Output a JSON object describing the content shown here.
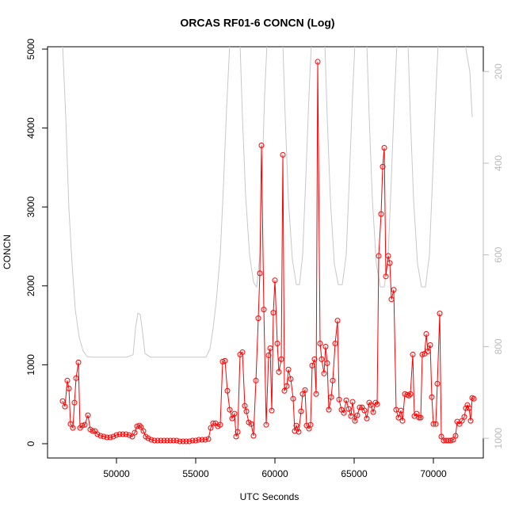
{
  "chart_data": {
    "type": "line",
    "title": "ORCAS RF01-6 CONCN (Log)",
    "x_label": "UTC Seconds",
    "y_label": "CONCN",
    "xlim": [
      45650,
      73150
    ],
    "xticks": [
      50000,
      55000,
      60000,
      65000,
      70000
    ],
    "ylim": [
      -181,
      5030
    ],
    "yticks": [
      0,
      1000,
      2000,
      3000,
      4000,
      5000
    ],
    "y2lim": [
      1043,
      146
    ],
    "y2ticks": [
      200,
      400,
      600,
      800,
      1000
    ],
    "series": [
      {
        "color": "#ff0000",
        "marker": "circle",
        "x": [
          46600,
          46750,
          46900,
          47000,
          47100,
          47250,
          47350,
          47450,
          47600,
          47700,
          47850,
          48000,
          48200,
          48350,
          48500,
          48650,
          48800,
          49000,
          49200,
          49400,
          49600,
          49800,
          50000,
          50200,
          50400,
          50600,
          50800,
          51000,
          51150,
          51300,
          51450,
          51550,
          51700,
          51850,
          52000,
          52200,
          52400,
          52600,
          52800,
          53000,
          53200,
          53400,
          53600,
          53800,
          54000,
          54200,
          54400,
          54600,
          54800,
          55000,
          55200,
          55400,
          55600,
          55800,
          55950,
          56100,
          56250,
          56400,
          56550,
          56700,
          56850,
          57000,
          57150,
          57300,
          57450,
          57550,
          57650,
          57800,
          57950,
          58100,
          58200,
          58350,
          58500,
          58650,
          58800,
          58950,
          59050,
          59150,
          59300,
          59450,
          59600,
          59700,
          59800,
          59900,
          60000,
          60150,
          60250,
          60400,
          60500,
          60600,
          60750,
          60850,
          61000,
          61150,
          61250,
          61350,
          61500,
          61650,
          61750,
          61900,
          62000,
          62150,
          62250,
          62350,
          62500,
          62600,
          62700,
          62850,
          62950,
          63100,
          63200,
          63300,
          63400,
          63550,
          63650,
          63800,
          63950,
          64050,
          64200,
          64350,
          64500,
          64650,
          64800,
          64900,
          65050,
          65200,
          65350,
          65500,
          65650,
          65800,
          65950,
          66050,
          66200,
          66350,
          66450,
          66550,
          66700,
          66800,
          66900,
          67000,
          67150,
          67250,
          67350,
          67500,
          67650,
          67800,
          67950,
          68050,
          68200,
          68350,
          68450,
          68550,
          68700,
          68800,
          68950,
          69100,
          69200,
          69300,
          69450,
          69550,
          69650,
          69800,
          69900,
          70000,
          70150,
          70250,
          70400,
          70500,
          70650,
          70800,
          70950,
          71100,
          71250,
          71400,
          71500,
          71650,
          71800,
          71950,
          72050,
          72150,
          72250,
          72350,
          72450,
          72550
        ],
        "values": [
          540,
          470,
          800,
          700,
          250,
          200,
          520,
          830,
          1030,
          200,
          230,
          240,
          360,
          180,
          160,
          160,
          120,
          100,
          90,
          80,
          80,
          90,
          110,
          120,
          120,
          120,
          110,
          90,
          140,
          220,
          230,
          210,
          160,
          90,
          70,
          50,
          40,
          40,
          40,
          40,
          40,
          40,
          40,
          40,
          30,
          30,
          30,
          30,
          40,
          40,
          50,
          50,
          50,
          60,
          200,
          260,
          260,
          220,
          240,
          1040,
          1050,
          670,
          430,
          320,
          380,
          90,
          150,
          1130,
          1160,
          480,
          410,
          270,
          250,
          100,
          800,
          1590,
          2160,
          3780,
          1700,
          240,
          1120,
          1210,
          420,
          1660,
          2070,
          1270,
          910,
          1070,
          3660,
          670,
          730,
          940,
          820,
          570,
          160,
          230,
          150,
          410,
          630,
          680,
          230,
          190,
          240,
          990,
          1070,
          630,
          4840,
          1270,
          1070,
          890,
          1230,
          1020,
          430,
          590,
          800,
          1270,
          1560,
          560,
          430,
          390,
          550,
          440,
          350,
          530,
          290,
          360,
          460,
          460,
          420,
          320,
          520,
          490,
          400,
          520,
          500,
          2380,
          2910,
          3510,
          3750,
          2120,
          2380,
          2290,
          1830,
          1950,
          430,
          330,
          420,
          290,
          630,
          620,
          610,
          630,
          1130,
          350,
          380,
          330,
          330,
          1130,
          1140,
          1390,
          1170,
          1250,
          590,
          250,
          250,
          760,
          1650,
          90,
          40,
          40,
          40,
          40,
          50,
          100,
          280,
          250,
          290,
          340,
          450,
          490,
          450,
          290,
          580,
          570
        ]
      },
      {
        "color": "#c8c8c8",
        "axis": "y2",
        "x": [
          46600,
          46800,
          47000,
          47200,
          47400,
          47650,
          47900,
          48150,
          48550,
          50650,
          51050,
          51200,
          51350,
          51500,
          51650,
          51800,
          52150,
          55650,
          55900,
          56100,
          56300,
          56550,
          56750,
          56950,
          57150,
          57800,
          57950,
          58150,
          58400,
          58650,
          58850,
          59050,
          59200,
          59350,
          59500,
          60500,
          60650,
          60850,
          61100,
          61350,
          61550,
          61750,
          61950,
          62150,
          62300,
          63150,
          63300,
          63500,
          63750,
          64000,
          64250,
          64500,
          64700,
          64900,
          65050,
          65800,
          65950,
          66150,
          66400,
          66650,
          66900,
          67150,
          67350,
          67550,
          67700,
          68400,
          68550,
          68750,
          69000,
          69250,
          69500,
          69750,
          69950,
          70150,
          70300,
          72000,
          72300,
          72450
        ],
        "values": [
          140,
          300,
          500,
          620,
          720,
          780,
          810,
          822,
          823,
          823,
          818,
          760,
          727,
          730,
          770,
          815,
          823,
          823,
          805,
          760,
          700,
          600,
          450,
          280,
          140,
          140,
          300,
          470,
          600,
          660,
          670,
          600,
          420,
          250,
          140,
          140,
          300,
          480,
          610,
          665,
          665,
          600,
          430,
          250,
          140,
          140,
          300,
          480,
          620,
          665,
          665,
          600,
          430,
          250,
          140,
          140,
          300,
          480,
          620,
          670,
          670,
          600,
          430,
          250,
          140,
          140,
          300,
          480,
          620,
          670,
          670,
          600,
          430,
          250,
          140,
          140,
          200,
          300
        ]
      }
    ]
  }
}
